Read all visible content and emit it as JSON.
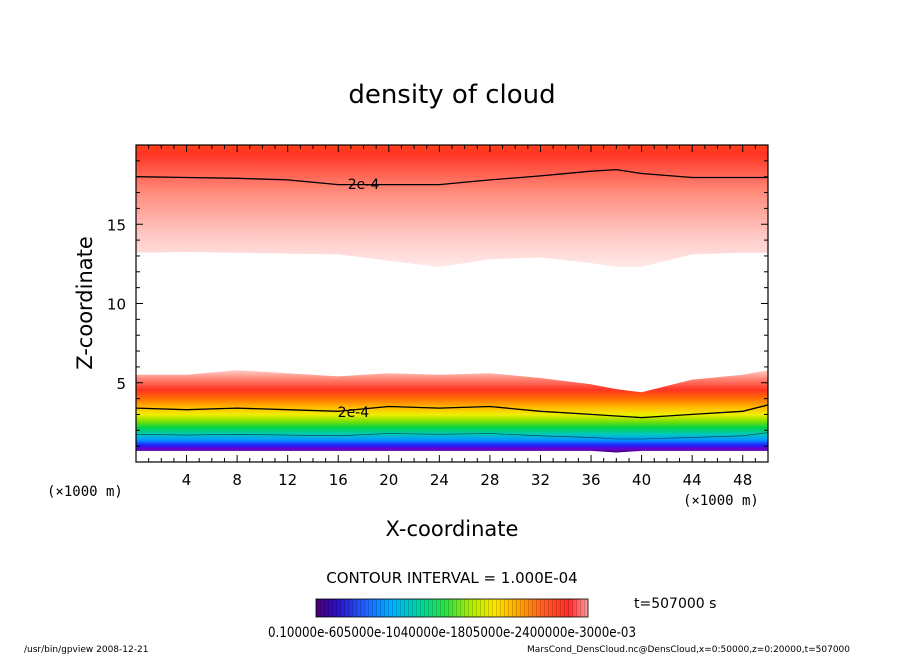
{
  "chart_data": {
    "type": "heatmap",
    "title": "density of cloud",
    "xlabel": "X-coordinate",
    "ylabel": "Z-coordinate",
    "x_unit": "(×1000 m)",
    "z_unit": "(×1000 m)",
    "xlim": [
      0,
      50
    ],
    "zlim": [
      0,
      20
    ],
    "x_ticks": [
      4,
      8,
      12,
      16,
      20,
      24,
      28,
      32,
      36,
      40,
      44,
      48
    ],
    "z_ticks": [
      5,
      10,
      15
    ],
    "contour_label": "2e-4",
    "contour_interval": "CONTOUR INTERVAL = 1.000E-04",
    "time_label": "t=507000 s",
    "colorbar_tick_text": "0.10000e-605000e-1040000e-1805000e-2400000e-3000e-03",
    "upper_layer": {
      "x": [
        0,
        4,
        8,
        12,
        16,
        20,
        24,
        28,
        32,
        36,
        38,
        40,
        44,
        48,
        50
      ],
      "bottom": [
        13.2,
        13.25,
        13.2,
        13.15,
        13.1,
        12.7,
        12.3,
        12.8,
        12.9,
        12.55,
        12.3,
        12.3,
        13.1,
        13.2,
        13.2
      ],
      "contour_2e4": [
        18.0,
        17.95,
        17.9,
        17.8,
        17.5,
        17.5,
        17.5,
        17.8,
        18.05,
        18.35,
        18.45,
        18.2,
        17.95,
        17.95,
        17.95
      ],
      "top_cutoff": 19.4
    },
    "lower_layer": {
      "x": [
        0,
        4,
        8,
        12,
        16,
        20,
        24,
        28,
        32,
        36,
        38,
        40,
        44,
        48,
        50
      ],
      "top": [
        5.5,
        5.5,
        5.8,
        5.6,
        5.4,
        5.6,
        5.5,
        5.6,
        5.3,
        4.9,
        4.6,
        4.4,
        5.2,
        5.5,
        5.8
      ],
      "contour_2e4": [
        3.4,
        3.3,
        3.4,
        3.3,
        3.2,
        3.5,
        3.4,
        3.5,
        3.2,
        3.0,
        2.9,
        2.8,
        3.0,
        3.2,
        3.6
      ],
      "bottom": [
        0.7,
        0.7,
        0.7,
        0.7,
        0.7,
        0.7,
        0.7,
        0.7,
        0.7,
        0.7,
        0.6,
        0.7,
        0.7,
        0.7,
        0.7
      ]
    }
  },
  "footer": {
    "left": "/usr/bin/gpview   2008-12-21",
    "right": "MarsCond_DensCloud.nc@DensCloud,x=0:50000,z=0:20000,t=507000"
  }
}
